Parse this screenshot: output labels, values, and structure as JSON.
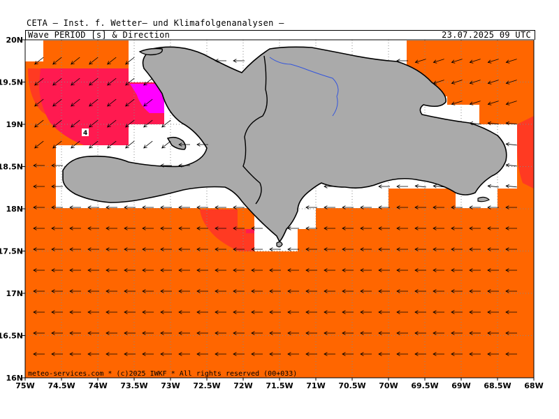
{
  "header": {
    "title": "CETA – Inst. f. Wetter– und Klimafolgenanalysen –",
    "parameter": "Wave PERIOD [s] & Direction",
    "valid_time": "23.07.2025 09 UTC"
  },
  "footer": {
    "credit": "meteo-services.com * (c)2025 IWKF * All rights reserved (00+033)"
  },
  "axes": {
    "lon_labels": [
      "75W",
      "74.5W",
      "74W",
      "73.5W",
      "73W",
      "72.5W",
      "72W",
      "71.5W",
      "71W",
      "70.5W",
      "70W",
      "69.5W",
      "69W",
      "68.5W",
      "68W"
    ],
    "lat_labels": [
      "20N",
      "19.5N",
      "19N",
      "18.5N",
      "18N",
      "17.5N",
      "17N",
      "16.5N",
      "16N"
    ],
    "lon_range": [
      -75,
      -68
    ],
    "lat_range": [
      16,
      20
    ]
  },
  "contour_label": "4",
  "colors": {
    "period_orange": "#ff6600",
    "period_red": "#ff3a22",
    "period_crimson": "#ff1a50",
    "period_magenta": "#ff00ff",
    "land": "#aaaaaa",
    "river": "#3355dd",
    "grid": "#888888"
  },
  "wave_direction": {
    "west": "arrow pointing west",
    "northwest_sector": "arrow pointing southwest"
  }
}
